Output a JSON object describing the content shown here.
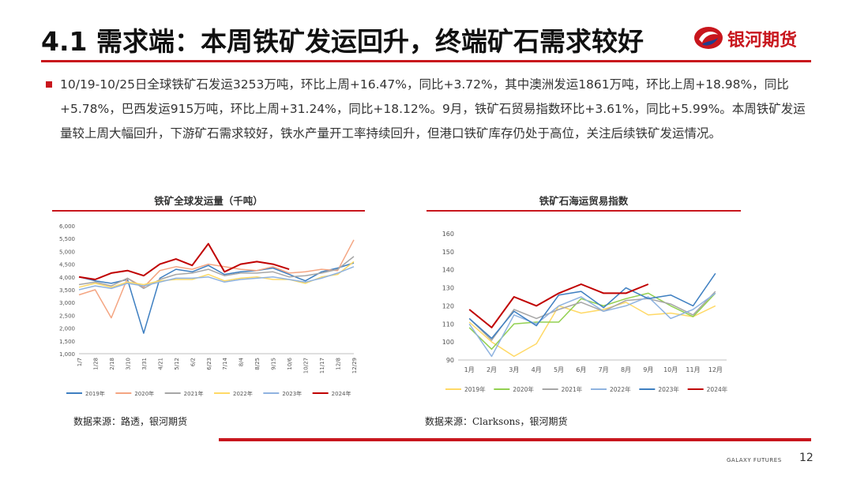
{
  "header": {
    "title": "4.1 需求端：本周铁矿发运回升，终端矿石需求较好",
    "logo_text": "银河期货"
  },
  "summary": {
    "text": "10/19-10/25日全球铁矿石发运3253万吨，环比上周+16.47%，同比+3.72%，其中澳洲发运1861万吨，环比上周+18.98%，同比+5.78%，巴西发运915万吨，环比上周+31.24%，同比+18.12%。9月，铁矿石贸易指数环比+3.61%，同比+5.99%。本周铁矿发运量较上周大幅回升，下游矿石需求较好，铁水产量开工率持续回升，但港口铁矿库存仍处于高位，关注后续铁矿发运情况。"
  },
  "left_chart": {
    "title": "铁矿全球发运量（千吨）",
    "source": "数据来源：路透，银河期货"
  },
  "right_chart": {
    "title": "铁矿石海运贸易指数",
    "source": "数据来源：Clarksons，银河期货"
  },
  "footer": {
    "brand": "GALAXY FUTURES",
    "page": "12"
  },
  "chart_data": [
    {
      "type": "line",
      "title": "铁矿全球发运量（千吨）",
      "xlabel": "",
      "ylabel": "",
      "ylim": [
        1000,
        6000
      ],
      "yticks": [
        "1,000",
        "1,500",
        "2,000",
        "2,500",
        "3,000",
        "3,500",
        "4,000",
        "4,500",
        "5,000",
        "5,500",
        "6,000"
      ],
      "categories": [
        "1/7",
        "1/28",
        "2/18",
        "3/10",
        "3/31",
        "4/21",
        "5/12",
        "6/2",
        "6/23",
        "7/14",
        "8/4",
        "8/25",
        "9/15",
        "10/6",
        "10/27",
        "11/17",
        "12/8",
        "12/29"
      ],
      "legend_position": "bottom",
      "series": [
        {
          "name": "2019年",
          "color": "#3e7fc1",
          "values": [
            4000,
            3850,
            3750,
            3900,
            1800,
            3950,
            4300,
            4200,
            4450,
            4100,
            4200,
            4250,
            4350,
            4100,
            3850,
            4200,
            4350,
            4550
          ]
        },
        {
          "name": "2020年",
          "color": "#f4a582",
          "values": [
            3300,
            3500,
            2400,
            3950,
            3600,
            4250,
            4400,
            4300,
            4500,
            4400,
            4300,
            4250,
            4400,
            4150,
            4200,
            4300,
            4250,
            5450
          ]
        },
        {
          "name": "2021年",
          "color": "#a6a6a6",
          "values": [
            3700,
            3800,
            3650,
            3950,
            3550,
            3900,
            4100,
            4150,
            4300,
            4050,
            4150,
            4150,
            4200,
            4000,
            4050,
            4150,
            4300,
            4800
          ]
        },
        {
          "name": "2022年",
          "color": "#ffd966",
          "values": [
            3600,
            3750,
            3600,
            3800,
            3700,
            3850,
            3900,
            3900,
            4100,
            3850,
            3950,
            4000,
            3900,
            3900,
            3750,
            4000,
            4100,
            4600
          ]
        },
        {
          "name": "2023年",
          "color": "#8fb3e0",
          "values": [
            3500,
            3650,
            3550,
            3750,
            3650,
            3800,
            3950,
            3950,
            4000,
            3800,
            3900,
            3950,
            4000,
            3900,
            3800,
            3950,
            4150,
            4400
          ]
        },
        {
          "name": "2024年",
          "color": "#c00000",
          "values": [
            4000,
            3900,
            4150,
            4250,
            4050,
            4500,
            4700,
            4450,
            5300,
            4200,
            4500,
            4600,
            4500,
            4300,
            null,
            null,
            null,
            null
          ]
        }
      ]
    },
    {
      "type": "line",
      "title": "铁矿石海运贸易指数",
      "xlabel": "",
      "ylabel": "",
      "ylim": [
        90,
        160
      ],
      "yticks": [
        "90",
        "100",
        "110",
        "120",
        "130",
        "140",
        "150",
        "160"
      ],
      "categories": [
        "1月",
        "2月",
        "3月",
        "4月",
        "5月",
        "6月",
        "7月",
        "8月",
        "9月",
        "10月",
        "11月",
        "12月"
      ],
      "legend_position": "bottom",
      "series": [
        {
          "name": "2019年",
          "color": "#ffd966",
          "values": [
            111,
            100,
            92,
            99,
            120,
            116,
            118,
            122,
            115,
            116,
            114,
            120
          ]
        },
        {
          "name": "2020年",
          "color": "#92d050",
          "values": [
            108,
            96,
            110,
            111,
            111,
            124,
            120,
            124,
            127,
            120,
            114,
            127
          ]
        },
        {
          "name": "2021年",
          "color": "#a6a6a6",
          "values": [
            113,
            101,
            118,
            113,
            118,
            122,
            117,
            123,
            124,
            121,
            115,
            128
          ]
        },
        {
          "name": "2022年",
          "color": "#8fb3e0",
          "values": [
            110,
            92,
            115,
            110,
            120,
            125,
            117,
            120,
            125,
            113,
            118,
            127
          ]
        },
        {
          "name": "2023年",
          "color": "#3e7fc1",
          "values": [
            113,
            102,
            117,
            109,
            126,
            128,
            119,
            130,
            124,
            126,
            120,
            138
          ]
        },
        {
          "name": "2024年",
          "color": "#c00000",
          "values": [
            118,
            108,
            125,
            120,
            127,
            132,
            127,
            127,
            132,
            null,
            null,
            null
          ]
        }
      ]
    }
  ]
}
